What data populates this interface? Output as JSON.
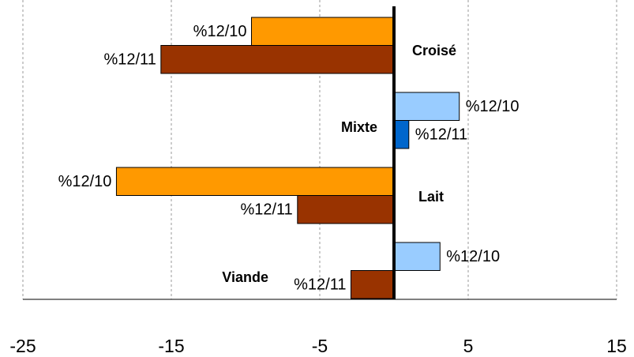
{
  "chart_data": {
    "type": "hbar",
    "categories": [
      "Croisé",
      "Mixte",
      "Lait",
      "Viande"
    ],
    "series": [
      {
        "name": "%12/10",
        "color": "#99ccff",
        "negative_color": "#ff9900",
        "values": [
          -9.6,
          4.4,
          -18.7,
          3.1
        ]
      },
      {
        "name": "%12/11",
        "color": "#0066cc",
        "negative_color": "#993300",
        "values": [
          -15.7,
          1.0,
          -6.5,
          -2.9
        ]
      }
    ],
    "xlim": [
      -25,
      15
    ],
    "xticks": [
      -25,
      -15,
      -5,
      5,
      15
    ],
    "grid": true
  }
}
